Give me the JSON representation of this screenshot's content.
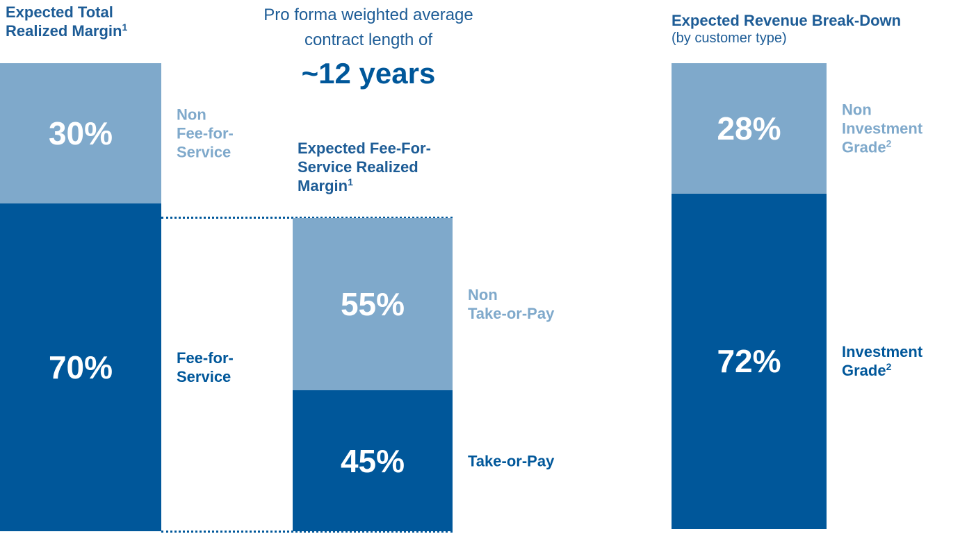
{
  "header": {
    "subtitle": "Pro forma weighted average\ncontract length of",
    "highlight": "~12 years"
  },
  "chart_data": [
    {
      "type": "stacked-bar",
      "title": "Expected Total\nRealized Margin",
      "title_footnote": "1",
      "series": [
        {
          "name": "Fee-for-\nService",
          "color": "#00579a",
          "values": [
            70
          ],
          "value_labels": [
            "70%"
          ]
        },
        {
          "name": "Non\nFee-for-\nService",
          "color": "#7fa9cb",
          "values": [
            30
          ],
          "value_labels": [
            "30%"
          ]
        }
      ]
    },
    {
      "type": "stacked-bar",
      "title": "Expected Fee-For-\nService Realized\nMargin",
      "title_footnote": "1",
      "series": [
        {
          "name": "Take-or-Pay",
          "color": "#00579a",
          "values": [
            45
          ],
          "value_labels": [
            "45%"
          ]
        },
        {
          "name": "Non\nTake-or-Pay",
          "color": "#7fa9cb",
          "values": [
            55
          ],
          "value_labels": [
            "55%"
          ]
        }
      ]
    },
    {
      "type": "stacked-bar",
      "title": "Expected Revenue Break-Down",
      "subtitle": "(by customer type)",
      "series": [
        {
          "name": "Investment\nGrade",
          "footnote": "2",
          "color": "#00579a",
          "values": [
            72
          ],
          "value_labels": [
            "72%"
          ]
        },
        {
          "name": "Non\nInvestment\nGrade",
          "footnote": "2",
          "color": "#7fa9cb",
          "values": [
            28
          ],
          "value_labels": [
            "28%"
          ]
        }
      ]
    }
  ]
}
